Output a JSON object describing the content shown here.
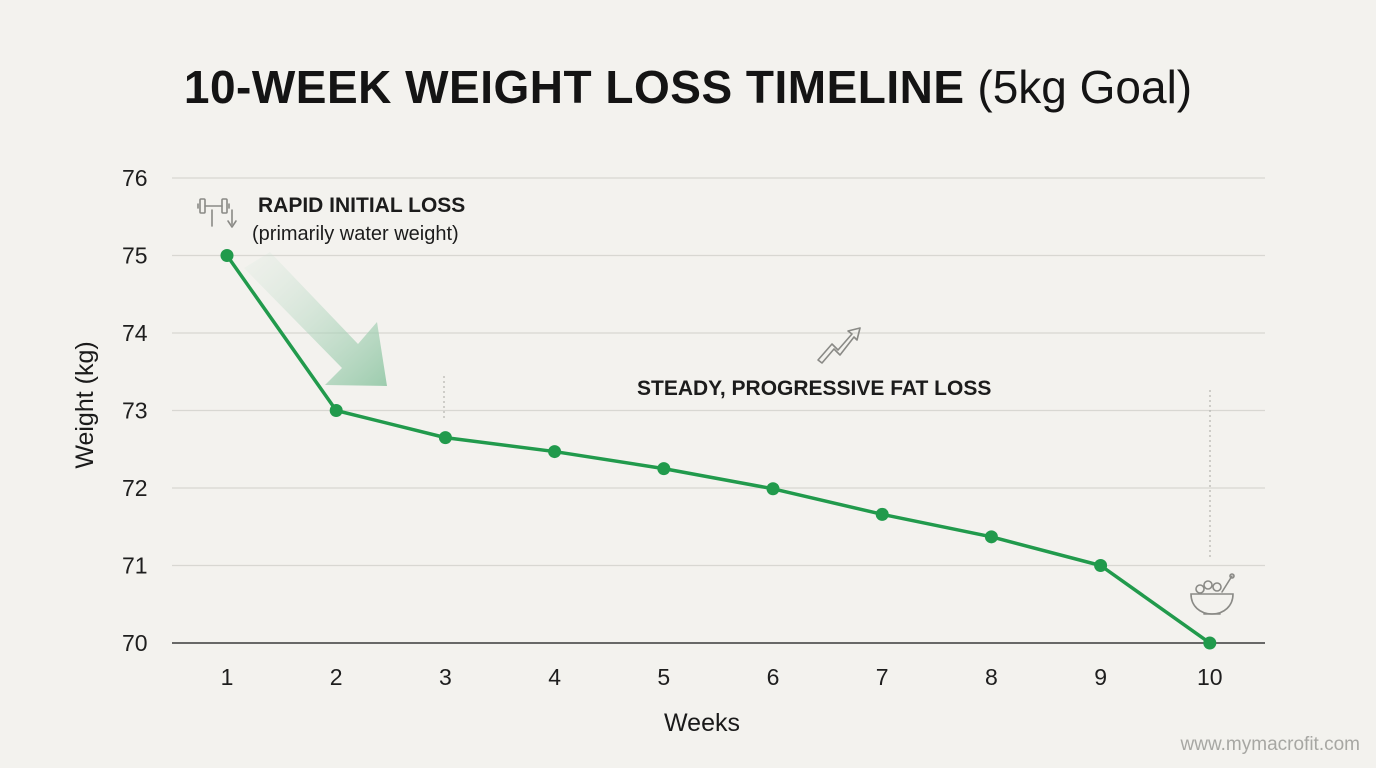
{
  "chart_data": {
    "type": "line",
    "title": "10-WEEK WEIGHT LOSS TIMELINE",
    "subtitle": "(5kg Goal)",
    "xlabel": "Weeks",
    "ylabel": "Weight (kg)",
    "x": [
      1,
      2,
      3,
      4,
      5,
      6,
      7,
      8,
      9,
      10
    ],
    "series": [
      {
        "values": [
          75,
          73,
          72.65,
          72.47,
          72.25,
          71.99,
          71.66,
          71.37,
          71.0,
          70.0
        ],
        "color": "#219a4c"
      }
    ],
    "xticks": [
      "1",
      "2",
      "3",
      "4",
      "5",
      "6",
      "7",
      "8",
      "9",
      "10"
    ],
    "yticks": [
      "70",
      "71",
      "72",
      "73",
      "74",
      "75",
      "76"
    ],
    "ylim": [
      70,
      76
    ],
    "grid": true,
    "annotations": [
      {
        "title": "RAPID INITIAL LOSS",
        "text": "(primarily water weight)",
        "icon": "dumbbell-down-arrow-icon"
      },
      {
        "title": "STEADY, PROGRESSIVE FAT LOSS",
        "icon": "trend-up-arrow-icon"
      },
      {
        "icon": "food-bowl-icon"
      }
    ]
  },
  "footer": {
    "watermark": "www.mymacrofit.com"
  }
}
